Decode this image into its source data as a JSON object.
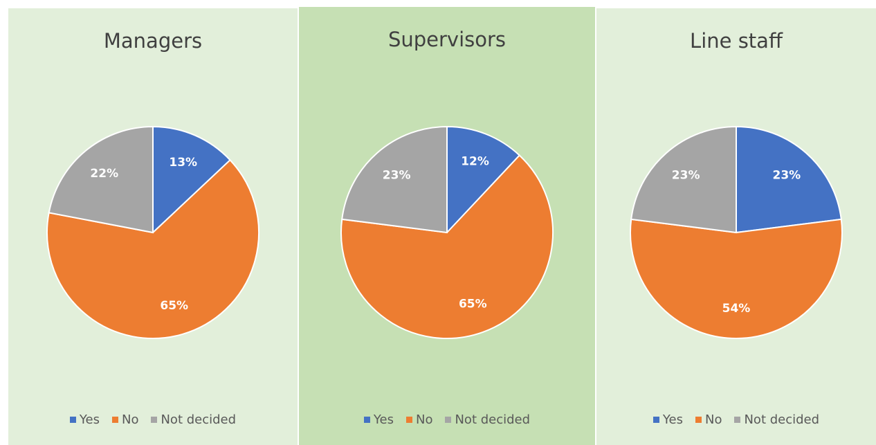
{
  "chart_data": [
    {
      "type": "pie",
      "title": "Managers",
      "categories": [
        "Yes",
        "No",
        "Not decided"
      ],
      "values": [
        13,
        65,
        22
      ],
      "value_labels": [
        "13%",
        "65%",
        "22%"
      ],
      "colors": [
        "#4472c4",
        "#ed7d31",
        "#a5a5a5"
      ]
    },
    {
      "type": "pie",
      "title": "Supervisors",
      "categories": [
        "Yes",
        "No",
        "Not decided"
      ],
      "values": [
        12,
        65,
        23
      ],
      "value_labels": [
        "12%",
        "65%",
        "23%"
      ],
      "colors": [
        "#4472c4",
        "#ed7d31",
        "#a5a5a5"
      ]
    },
    {
      "type": "pie",
      "title": "Line staff",
      "categories": [
        "Yes",
        "No",
        "Not decided"
      ],
      "values": [
        23,
        54,
        23
      ],
      "value_labels": [
        "23%",
        "54%",
        "23%"
      ],
      "colors": [
        "#4472c4",
        "#ed7d31",
        "#a5a5a5"
      ]
    }
  ]
}
